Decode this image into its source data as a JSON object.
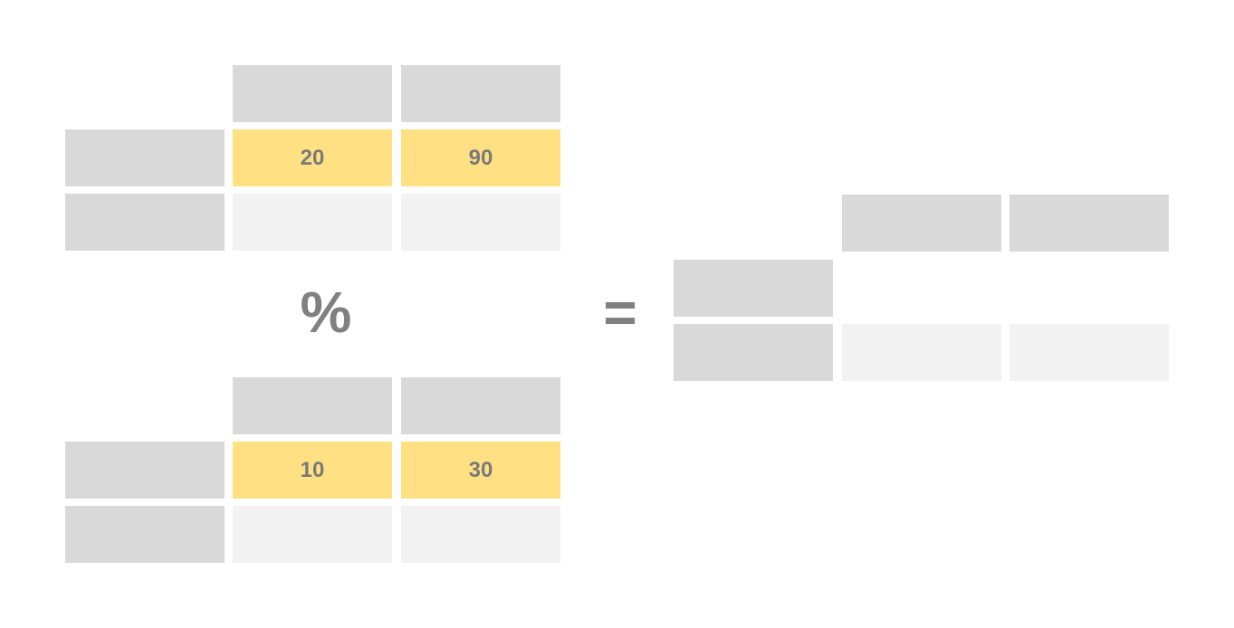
{
  "colors": {
    "header": "#d9d9d9",
    "index": "#d9d9d9",
    "value": "#f2f2f2",
    "highlight": "#ffe082",
    "text": "#7a7a7a",
    "operator": "#808080"
  },
  "left_top": {
    "row1": [
      "20",
      "90"
    ],
    "row2": [
      "",
      ""
    ]
  },
  "operator_mod": "%",
  "left_bottom": {
    "row1": [
      "10",
      "30"
    ],
    "row2": [
      "",
      ""
    ]
  },
  "operator_equals": "=",
  "result": {
    "row1": [
      "",
      ""
    ],
    "row2": [
      "",
      ""
    ]
  }
}
